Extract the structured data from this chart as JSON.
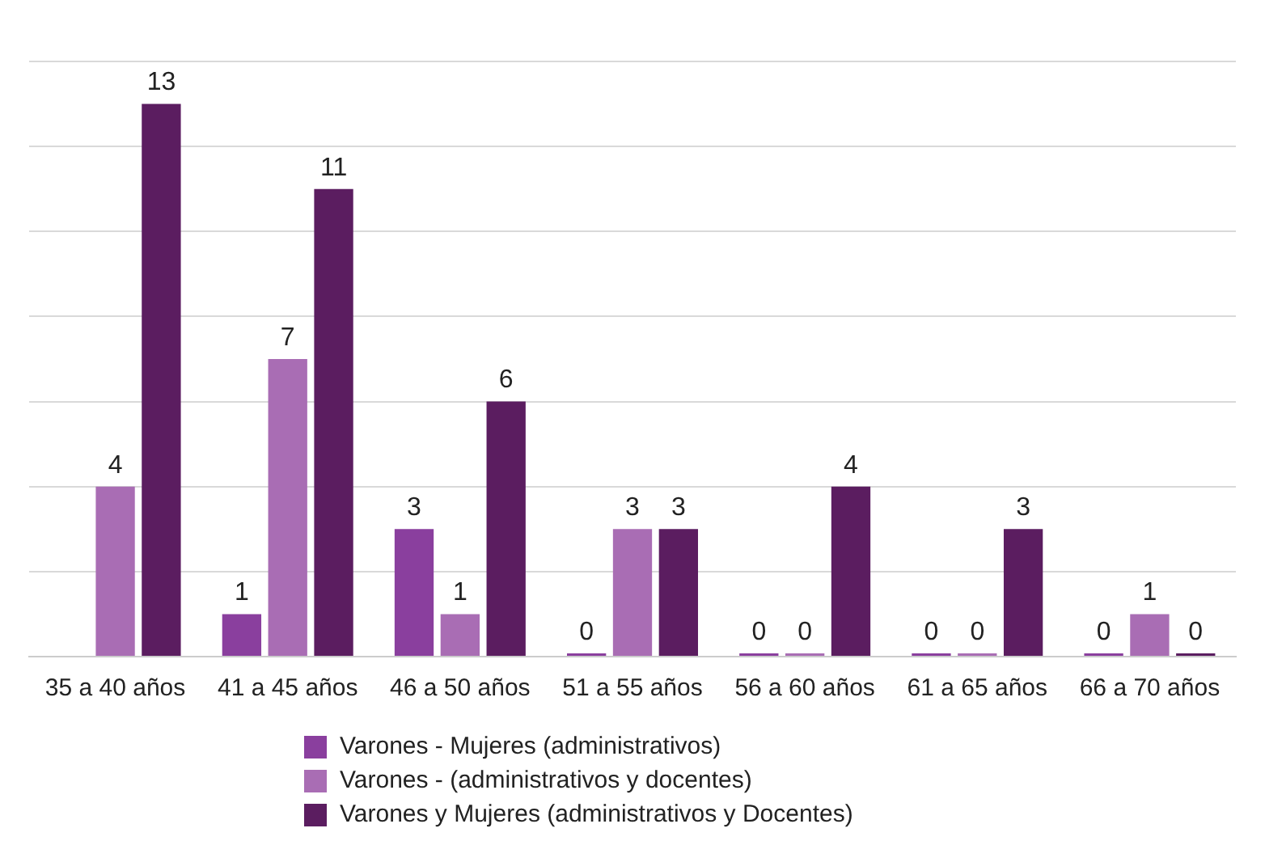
{
  "chart_data": {
    "type": "bar",
    "categories": [
      "35 a 40 años",
      "41 a 45 años",
      "46 a 50 años",
      "51 a 55 años",
      "56 a 60 años",
      "61 a 65 años",
      "66 a 70 años"
    ],
    "series": [
      {
        "name": "Varones - Mujeres (administrativos)",
        "color": "#8a3f9e",
        "values": [
          null,
          1,
          3,
          0,
          0,
          0,
          0
        ]
      },
      {
        "name": "Varones - (administrativos y docentes)",
        "color": "#a96db4",
        "values": [
          4,
          7,
          1,
          3,
          0,
          0,
          1
        ]
      },
      {
        "name": "Varones y Mujeres (administrativos y Docentes)",
        "color": "#5b1d60",
        "values": [
          13,
          11,
          6,
          3,
          4,
          3,
          0
        ]
      }
    ],
    "ylim": [
      0,
      14
    ],
    "yticks": [
      0,
      2,
      4,
      6,
      8,
      10,
      12,
      14
    ],
    "grid": "y",
    "tick_labels": "x",
    "data_labels": true,
    "legend": "bottom"
  }
}
